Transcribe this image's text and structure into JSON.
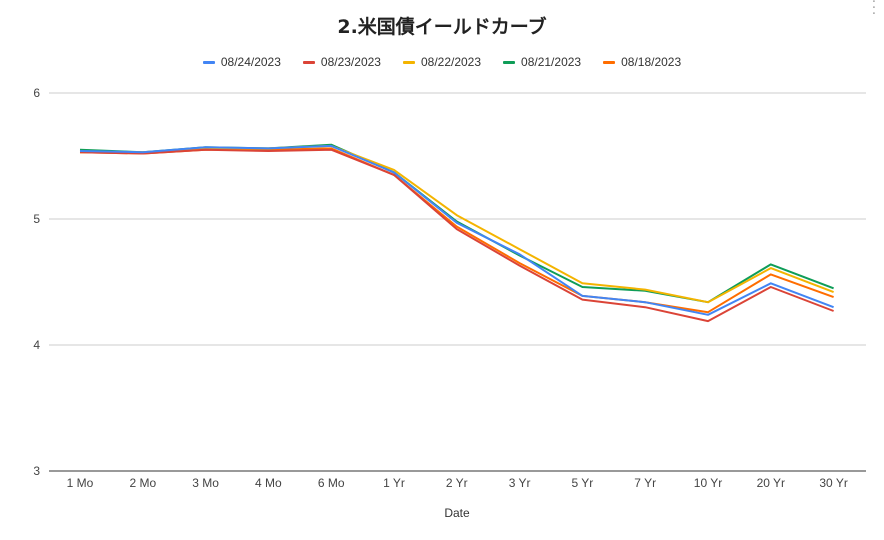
{
  "chart_data": {
    "type": "line",
    "title": "2.米国債イールドカーブ",
    "xlabel": "Date",
    "ylabel": "",
    "ylim": [
      3,
      6
    ],
    "yticks": [
      "3",
      "4",
      "5",
      "6"
    ],
    "grid": true,
    "legend_position": "top",
    "categories": [
      "1 Mo",
      "2 Mo",
      "3 Mo",
      "4 Mo",
      "6 Mo",
      "1 Yr",
      "2 Yr",
      "3 Yr",
      "5 Yr",
      "7 Yr",
      "10 Yr",
      "20 Yr",
      "30 Yr"
    ],
    "series": [
      {
        "name": "08/24/2023",
        "color": "#4285F4",
        "values": [
          5.54,
          5.53,
          5.57,
          5.56,
          5.58,
          5.37,
          4.97,
          4.72,
          4.39,
          4.34,
          4.24,
          4.49,
          4.3
        ]
      },
      {
        "name": "08/23/2023",
        "color": "#DB4437",
        "values": [
          5.53,
          5.52,
          5.55,
          5.54,
          5.55,
          5.35,
          4.92,
          4.63,
          4.36,
          4.3,
          4.19,
          4.46,
          4.27
        ]
      },
      {
        "name": "08/22/2023",
        "color": "#F4B400",
        "values": [
          5.53,
          5.53,
          5.56,
          5.56,
          5.58,
          5.39,
          5.03,
          4.76,
          4.49,
          4.44,
          4.34,
          4.61,
          4.42
        ]
      },
      {
        "name": "08/21/2023",
        "color": "#0F9D58",
        "values": [
          5.55,
          5.53,
          5.57,
          5.56,
          5.59,
          5.37,
          4.98,
          4.71,
          4.46,
          4.43,
          4.34,
          4.64,
          4.45
        ]
      },
      {
        "name": "08/18/2023",
        "color": "#FF6D00",
        "values": [
          5.53,
          5.52,
          5.55,
          5.55,
          5.56,
          5.35,
          4.94,
          4.65,
          4.39,
          4.34,
          4.26,
          4.56,
          4.38
        ]
      }
    ]
  }
}
